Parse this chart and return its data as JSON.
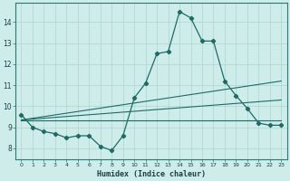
{
  "title": "",
  "xlabel": "Humidex (Indice chaleur)",
  "bg_color": "#cdecea",
  "line_color": "#1e6b65",
  "grid_color": "#aed4d0",
  "xlim": [
    -0.5,
    23.5
  ],
  "ylim": [
    7.5,
    14.9
  ],
  "xticks": [
    0,
    1,
    2,
    3,
    4,
    5,
    6,
    7,
    8,
    9,
    10,
    11,
    12,
    13,
    14,
    15,
    16,
    17,
    18,
    19,
    20,
    21,
    22,
    23
  ],
  "yticks": [
    8,
    9,
    10,
    11,
    12,
    13,
    14
  ],
  "main_series": {
    "x": [
      0,
      1,
      2,
      3,
      4,
      5,
      6,
      7,
      8,
      9,
      10,
      11,
      12,
      13,
      14,
      15,
      16,
      17,
      18,
      19,
      20,
      21,
      22,
      23
    ],
    "y": [
      9.6,
      9.0,
      8.8,
      8.7,
      8.5,
      8.6,
      8.6,
      8.1,
      7.9,
      8.6,
      10.4,
      11.1,
      12.5,
      12.6,
      14.5,
      14.2,
      13.1,
      13.1,
      11.2,
      10.5,
      9.9,
      9.2,
      9.1,
      9.1
    ]
  },
  "trend_lines": [
    {
      "x0": 0,
      "y0": 9.35,
      "x1": 23,
      "y1": 9.35
    },
    {
      "x0": 0,
      "y0": 9.35,
      "x1": 23,
      "y1": 10.3
    },
    {
      "x0": 0,
      "y0": 9.35,
      "x1": 23,
      "y1": 11.2
    }
  ]
}
